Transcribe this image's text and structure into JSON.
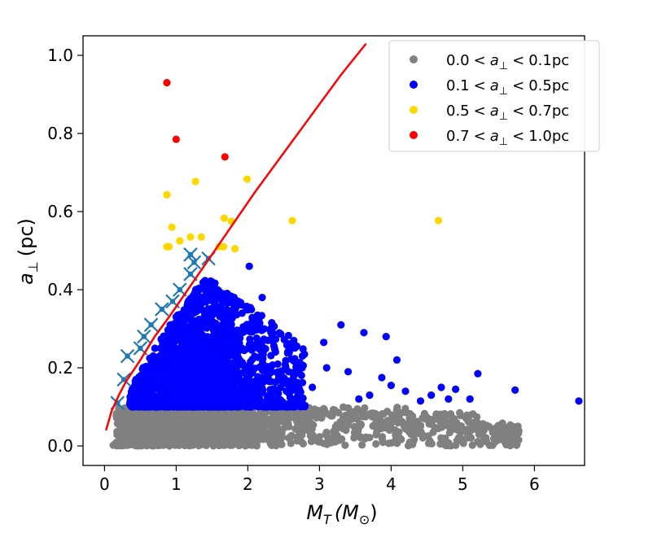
{
  "chart_data": {
    "type": "scatter",
    "xlabel_main": "M",
    "xlabel_sub": "T",
    "xlabel_paren": "(M",
    "xlabel_sun": "⊙",
    "xlabel_close": ")",
    "ylabel_main": "a",
    "ylabel_sub": "⊥",
    "ylabel_unit": "(pc)",
    "xlim": [
      -0.3,
      6.7
    ],
    "ylim": [
      -0.05,
      1.05
    ],
    "xticks": [
      0,
      1,
      2,
      3,
      4,
      5,
      6
    ],
    "xtick_labels": [
      "0",
      "1",
      "2",
      "3",
      "4",
      "5",
      "6"
    ],
    "yticks": [
      0.0,
      0.2,
      0.4,
      0.6,
      0.8,
      1.0
    ],
    "ytick_labels": [
      "0.0",
      "0.2",
      "0.4",
      "0.6",
      "0.8",
      "1.0"
    ],
    "legend_position": "top-right",
    "legend": [
      {
        "lo": "0.0",
        "hi": "0.1pc",
        "color": "#808080"
      },
      {
        "lo": "0.1",
        "hi": "0.5pc",
        "color": "#0000ff"
      },
      {
        "lo": "0.5",
        "hi": "0.7pc",
        "color": "#ffd700"
      },
      {
        "lo": "0.7",
        "hi": "1.0pc",
        "color": "#ff0000"
      }
    ],
    "legend_symbol": "a",
    "legend_sub": "⊥",
    "legend_lt": "<",
    "colors": {
      "gray": "#808080",
      "blue": "#0000ff",
      "gold": "#ffd700",
      "red": "#ff0000",
      "curve": "#ff0000",
      "marker": "#1f77b4"
    },
    "curve": {
      "x": [
        0.02,
        0.1,
        0.2,
        0.3,
        0.5,
        0.7,
        0.9,
        1.2,
        1.5,
        1.8,
        2.1,
        2.5,
        2.9,
        3.3,
        3.65
      ],
      "y": [
        0.04,
        0.09,
        0.13,
        0.165,
        0.22,
        0.28,
        0.33,
        0.41,
        0.49,
        0.57,
        0.65,
        0.75,
        0.85,
        0.95,
        1.03
      ]
    },
    "red_points": {
      "x": [
        0.87,
        1.0,
        1.68
      ],
      "y": [
        0.93,
        0.785,
        0.74
      ]
    },
    "gold_points": {
      "x": [
        0.87,
        1.27,
        1.67,
        1.99,
        0.87,
        0.94,
        1.05,
        1.66,
        1.77,
        2.62,
        4.66,
        0.9,
        1.35,
        1.6,
        1.82,
        1.2
      ],
      "y": [
        0.643,
        0.677,
        0.583,
        0.683,
        0.51,
        0.56,
        0.525,
        0.51,
        0.575,
        0.577,
        0.577,
        0.51,
        0.535,
        0.51,
        0.505,
        0.535
      ]
    },
    "blue_outliers": {
      "x": [
        6.62,
        5.73,
        5.21,
        4.9,
        4.7,
        4.56,
        4.41,
        4.08,
        3.93,
        3.87,
        3.62,
        3.3,
        3.06,
        2.79,
        2.32,
        2.2,
        2.52,
        2.28,
        2.02,
        2.15,
        3.4,
        3.7,
        4.2,
        4.8,
        5.1,
        4.0,
        3.1,
        2.9,
        2.6,
        3.55
      ],
      "y": [
        0.115,
        0.143,
        0.185,
        0.145,
        0.15,
        0.13,
        0.115,
        0.22,
        0.28,
        0.175,
        0.29,
        0.31,
        0.265,
        0.235,
        0.3,
        0.38,
        0.16,
        0.27,
        0.46,
        0.33,
        0.19,
        0.13,
        0.14,
        0.12,
        0.12,
        0.155,
        0.2,
        0.15,
        0.14,
        0.12
      ]
    },
    "cross_markers": {
      "x": [
        0.18,
        0.27,
        0.32,
        0.5,
        0.55,
        0.65,
        0.8,
        0.95,
        1.05,
        1.2,
        1.25,
        1.45,
        1.2
      ],
      "y": [
        0.11,
        0.17,
        0.23,
        0.25,
        0.28,
        0.31,
        0.35,
        0.37,
        0.4,
        0.44,
        0.47,
        0.48,
        0.49
      ]
    },
    "gray_cloud": {
      "x_range": [
        0.1,
        5.8
      ],
      "y_range": [
        0.0,
        0.1
      ],
      "count": 2600
    },
    "blue_cloud": {
      "x_center": 1.3,
      "y_min": 0.1,
      "y_max": 0.45,
      "count": 2200
    }
  }
}
